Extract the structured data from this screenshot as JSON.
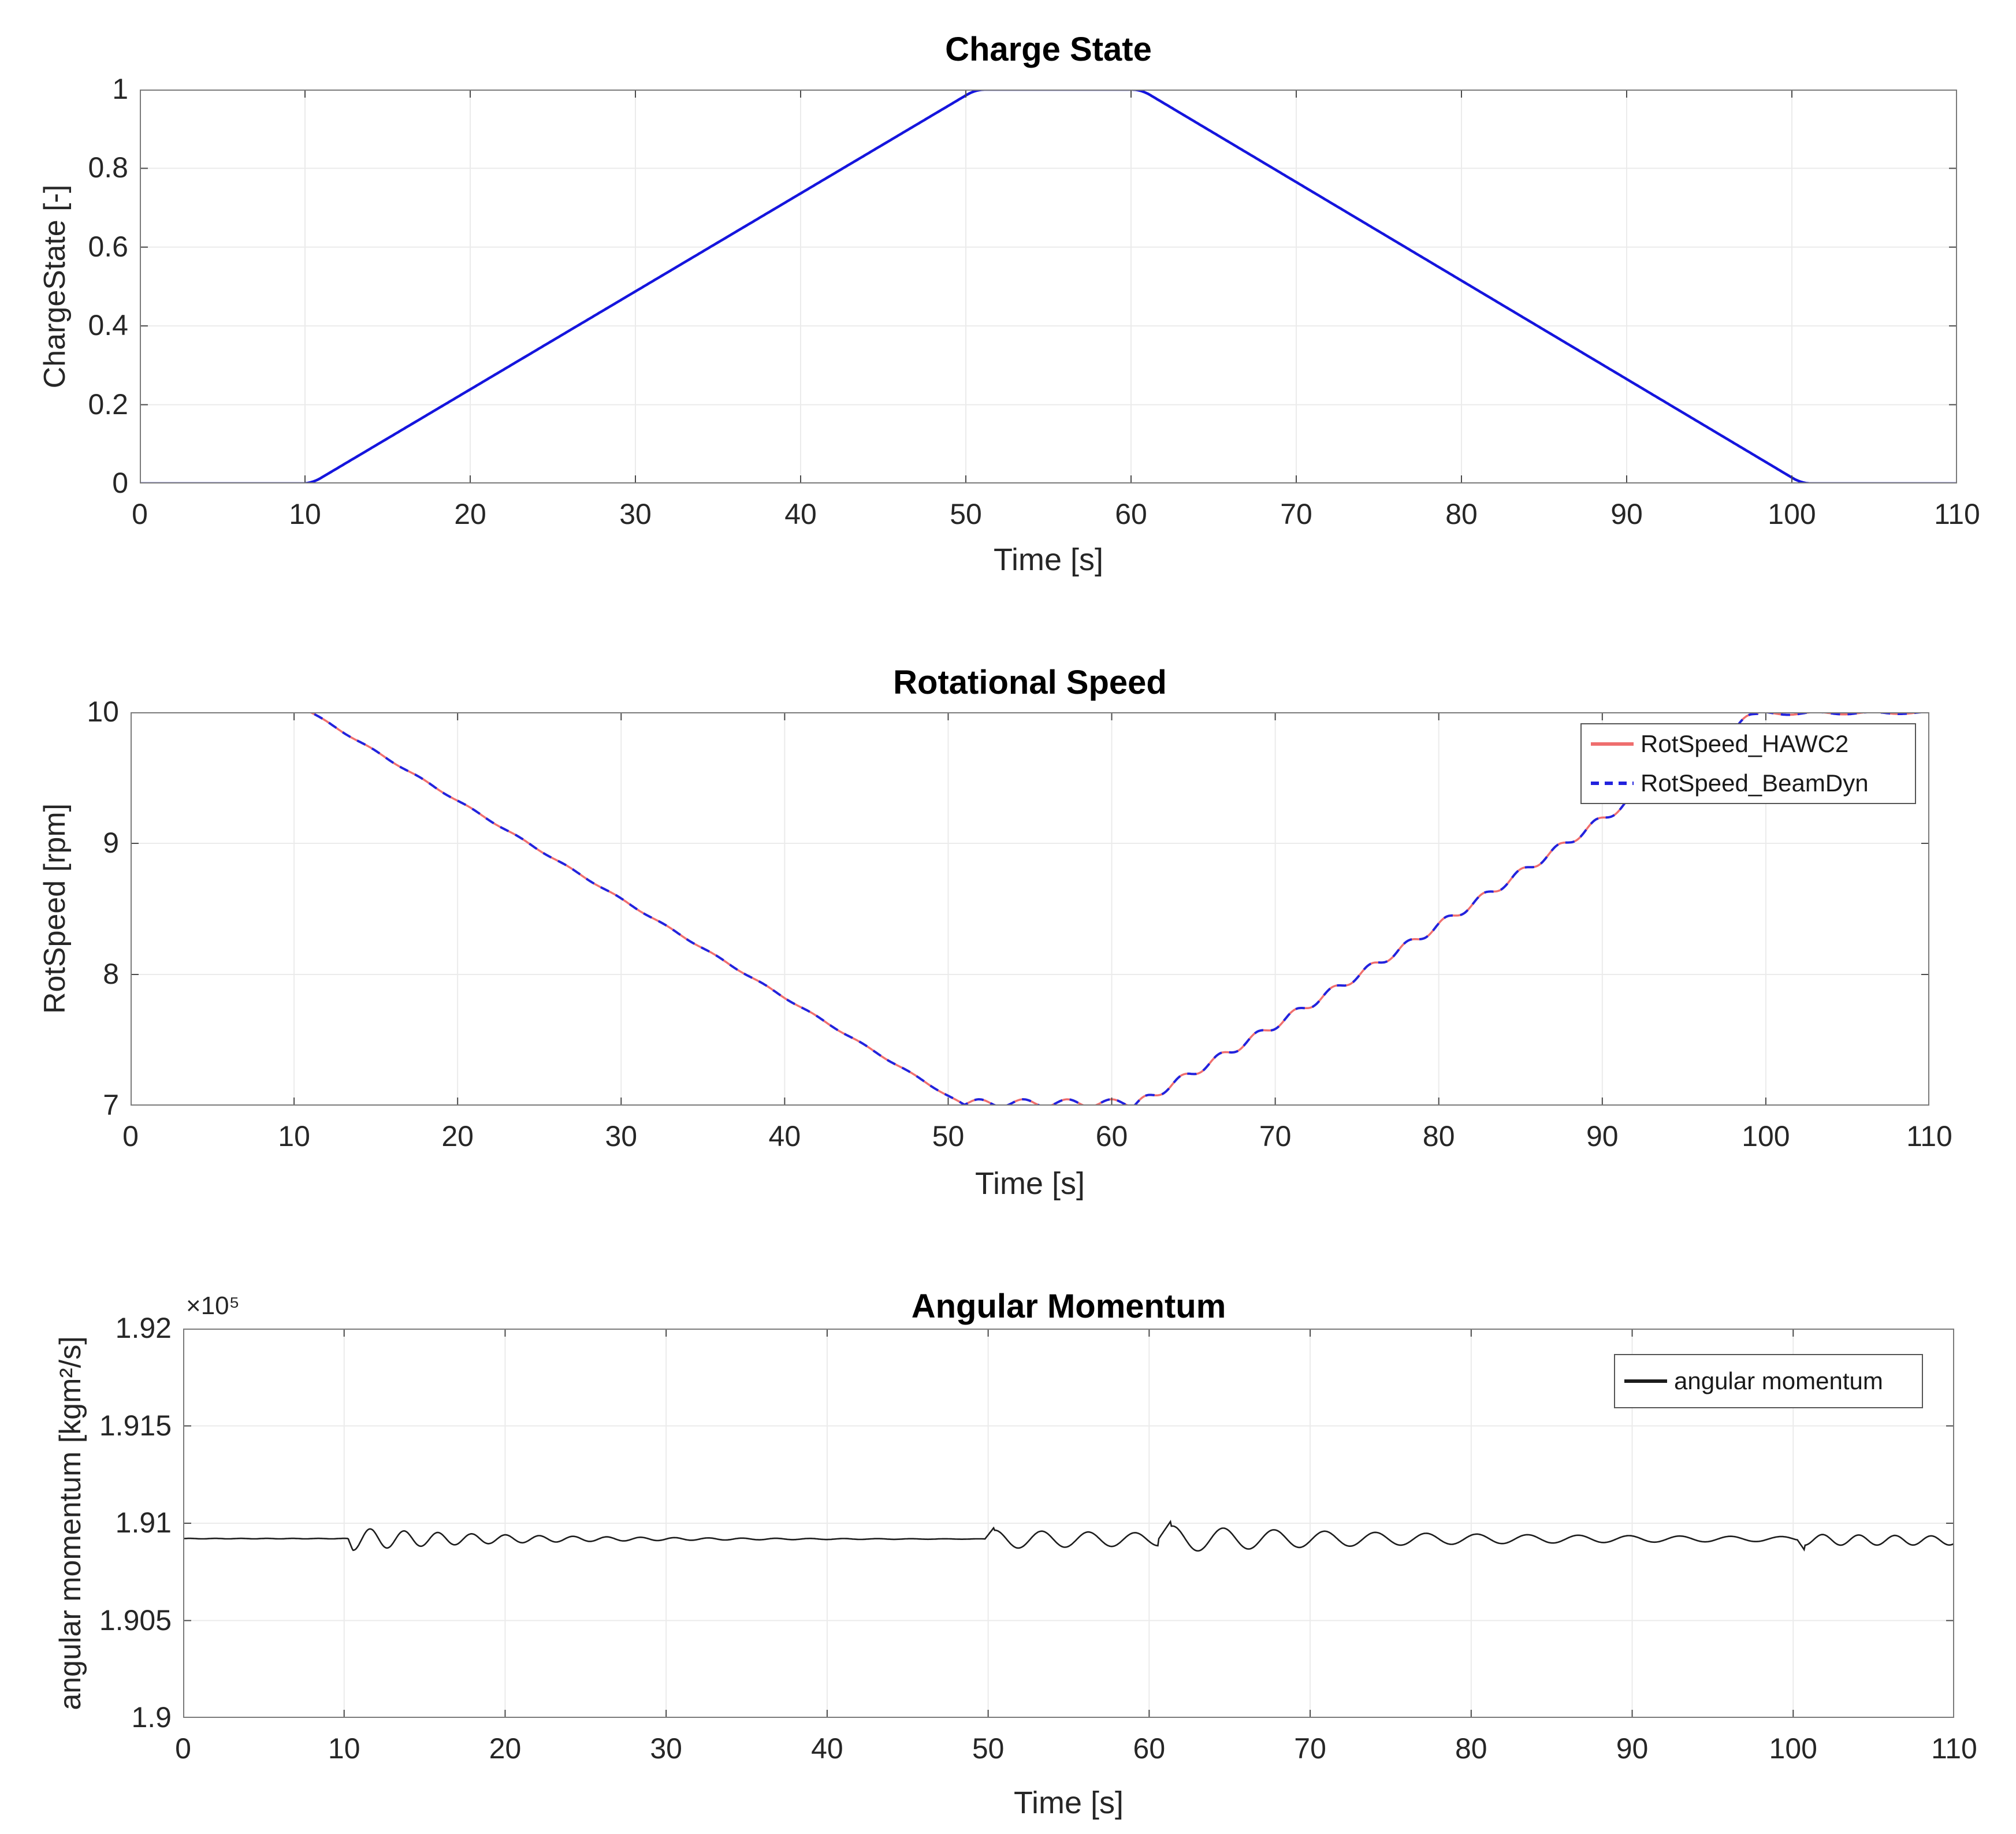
{
  "figure": {
    "background": "#ffffff"
  },
  "colors": {
    "grid": "#ebebeb",
    "axis_box": "#7a7a7a",
    "tick_text": "#262626",
    "charge_blue": "#1515dd",
    "hawc2_red": "#ef6e6e",
    "beamdyn_blue": "#2222dd",
    "momentum_black": "#1c1c1c"
  },
  "chart_data": [
    {
      "type": "line",
      "title": "Charge State",
      "xlabel": "Time [s]",
      "ylabel": "ChargeState [-]",
      "xlim": [
        0,
        110
      ],
      "ylim": [
        0,
        1
      ],
      "xticks": [
        0,
        10,
        20,
        30,
        40,
        50,
        60,
        70,
        80,
        90,
        100,
        110
      ],
      "yticks": [
        0,
        0.2,
        0.4,
        0.6,
        0.8,
        1
      ],
      "ytick_labels": [
        "0",
        "0.2",
        "0.4",
        "0.6",
        "0.8",
        "1"
      ],
      "grid": true,
      "legend": null,
      "series": [
        {
          "name": "ChargeState",
          "color": "#1515dd",
          "width": 4.5,
          "dash": "solid",
          "smooth": 0.55,
          "key_points": [
            [
              0,
              0
            ],
            [
              10.4,
              0
            ],
            [
              50.6,
              1
            ],
            [
              60.6,
              1
            ],
            [
              100.6,
              0
            ],
            [
              110,
              0
            ]
          ],
          "segments": [
            {
              "t0": 0,
              "t1": 10.4,
              "v": [
                0,
                0
              ]
            },
            {
              "t0": 10.4,
              "t1": 50.6,
              "v": [
                0,
                1
              ]
            },
            {
              "t0": 50.6,
              "t1": 60.6,
              "v": [
                1,
                1
              ]
            },
            {
              "t0": 60.6,
              "t1": 100.6,
              "v": [
                1,
                0
              ]
            },
            {
              "t0": 100.6,
              "t1": 110,
              "v": [
                0,
                0
              ]
            }
          ]
        }
      ]
    },
    {
      "type": "line",
      "title": "Rotational Speed",
      "xlabel": "Time [s]",
      "ylabel": "RotSpeed [rpm]",
      "xlim": [
        0,
        110
      ],
      "ylim": [
        7,
        10
      ],
      "xticks": [
        0,
        10,
        20,
        30,
        40,
        50,
        60,
        70,
        80,
        90,
        100,
        110
      ],
      "yticks": [
        7,
        8,
        9,
        10
      ],
      "ytick_labels": [
        "7",
        "8",
        "9",
        "10"
      ],
      "grid": true,
      "legend": {
        "position": "top-right",
        "entries": [
          {
            "label": "RotSpeed_HAWC2",
            "color": "#ef6e6e",
            "dash": "solid"
          },
          {
            "label": "RotSpeed_BeamDyn",
            "color": "#2222dd",
            "dash": "dashed"
          }
        ]
      },
      "key_points_description": "10 rpm until t=11, linear ramp down to 7 rpm at t=51, ~7 rpm with small ripple until t=61, wavy ramp up to 10 rpm at t=99.5, ~10 rpm until 110",
      "series": [
        {
          "name": "RotSpeed_HAWC2",
          "color": "#ef6e6e",
          "width": 3.5,
          "dash": "solid",
          "segments": [
            {
              "t0": 0,
              "t1": 11.0,
              "v": [
                10,
                10
              ]
            },
            {
              "t0": 11.0,
              "t1": 51.0,
              "v": [
                10,
                7
              ],
              "osc": {
                "amp": 0.006,
                "period": 3.0,
                "phase": 0
              }
            },
            {
              "t0": 51.0,
              "t1": 61.4,
              "v": [
                7.02,
                7.02
              ],
              "osc": {
                "amp": 0.028,
                "period": 2.7,
                "phase": -0.5
              }
            },
            {
              "t0": 61.4,
              "t1": 99.5,
              "v": [
                7,
                10
              ],
              "ease": 0.12,
              "osc": {
                "amp": 0.03,
                "period": 2.3,
                "phase": 0
              }
            },
            {
              "t0": 99.5,
              "t1": 110,
              "v": [
                9.99,
                9.995
              ],
              "osc": {
                "amp": 0.012,
                "tau": 18,
                "period": 3.4,
                "phase": 1.2
              }
            }
          ]
        },
        {
          "name": "RotSpeed_BeamDyn",
          "color": "#2222dd",
          "width": 4,
          "dash": "16 13",
          "segments": [
            {
              "t0": 0,
              "t1": 11.0,
              "v": [
                10,
                10
              ]
            },
            {
              "t0": 11.0,
              "t1": 51.0,
              "v": [
                10,
                7
              ],
              "osc": {
                "amp": 0.006,
                "period": 3.0,
                "phase": 0
              }
            },
            {
              "t0": 51.0,
              "t1": 61.4,
              "v": [
                7.02,
                7.02
              ],
              "osc": {
                "amp": 0.028,
                "period": 2.7,
                "phase": -0.5
              }
            },
            {
              "t0": 61.4,
              "t1": 99.5,
              "v": [
                7,
                10
              ],
              "ease": 0.12,
              "osc": {
                "amp": 0.03,
                "period": 2.3,
                "phase": 0
              }
            },
            {
              "t0": 99.5,
              "t1": 110,
              "v": [
                9.99,
                9.995
              ],
              "osc": {
                "amp": 0.012,
                "tau": 18,
                "period": 3.4,
                "phase": 1.2
              }
            }
          ]
        }
      ]
    },
    {
      "type": "line",
      "title": "Angular Momentum",
      "xlabel": "Time [s]",
      "ylabel": "angular momentum  [kgm²/s]",
      "y_offset_label": "×10⁵",
      "xlim": [
        0,
        110
      ],
      "ylim": [
        1.9,
        1.92
      ],
      "xticks": [
        0,
        10,
        20,
        30,
        40,
        50,
        60,
        70,
        80,
        90,
        100,
        110
      ],
      "yticks": [
        1.9,
        1.905,
        1.91,
        1.915,
        1.92
      ],
      "ytick_labels": [
        "1.9",
        "1.905",
        "1.91",
        "1.915",
        "1.92"
      ],
      "grid": true,
      "legend": {
        "position": "top-right",
        "entries": [
          {
            "label": "angular momentum",
            "color": "#1c1c1c",
            "dash": "solid"
          }
        ]
      },
      "key_points_description": "mean ~1.9092e5 kgm2/s; flat to t=10, dip then decaying oscillation 10-50, step oscillations 50-60, sharp spike to ~1.9101e5 at t=61, decaying oscillation to t=100, sharp dip at t=100.5, small oscillation to 110",
      "series": [
        {
          "name": "angular momentum",
          "color": "#1c1c1c",
          "width": 2.6,
          "dash": "solid",
          "segments": [
            {
              "t0": 0,
              "t1": 10.25,
              "v": [
                1.90921,
                1.90921
              ],
              "osc": {
                "amp": 1.2e-05,
                "period": 1.6,
                "phase": 0
              }
            },
            {
              "t0": 10.25,
              "t1": 10.55,
              "v": [
                1.90921,
                1.90858
              ]
            },
            {
              "t0": 10.55,
              "t1": 49.8,
              "v": [
                1.90919,
                1.90919
              ],
              "osc": {
                "amp": 0.00058,
                "tau": 9.5,
                "period": 2.1,
                "phase": -1.65
              }
            },
            {
              "t0": 49.8,
              "t1": 50.35,
              "v": [
                1.90919,
                1.90977
              ]
            },
            {
              "t0": 50.35,
              "t1": 60.55,
              "v": [
                1.90917,
                1.90917
              ],
              "osc": {
                "amp": 0.00047,
                "tau": 28,
                "period": 2.9,
                "phase": 1.4
              }
            },
            {
              "t0": 60.55,
              "t1": 61.35,
              "v": [
                1.90915,
                1.91012
              ]
            },
            {
              "t0": 61.35,
              "t1": 100.25,
              "v": [
                1.90919,
                1.90919
              ],
              "osc": {
                "amp": 0.0006,
                "amp_inf": 7e-05,
                "tau": 16,
                "period": 3.15,
                "phase": 1.35
              }
            },
            {
              "t0": 100.25,
              "t1": 100.7,
              "v": [
                1.90916,
                1.90862
              ]
            },
            {
              "t0": 100.7,
              "t1": 110,
              "v": [
                1.90915,
                1.90911
              ],
              "osc": {
                "amp": 0.00028,
                "tau": 45,
                "period": 2.25,
                "phase": -1.57
              }
            }
          ]
        }
      ]
    }
  ]
}
